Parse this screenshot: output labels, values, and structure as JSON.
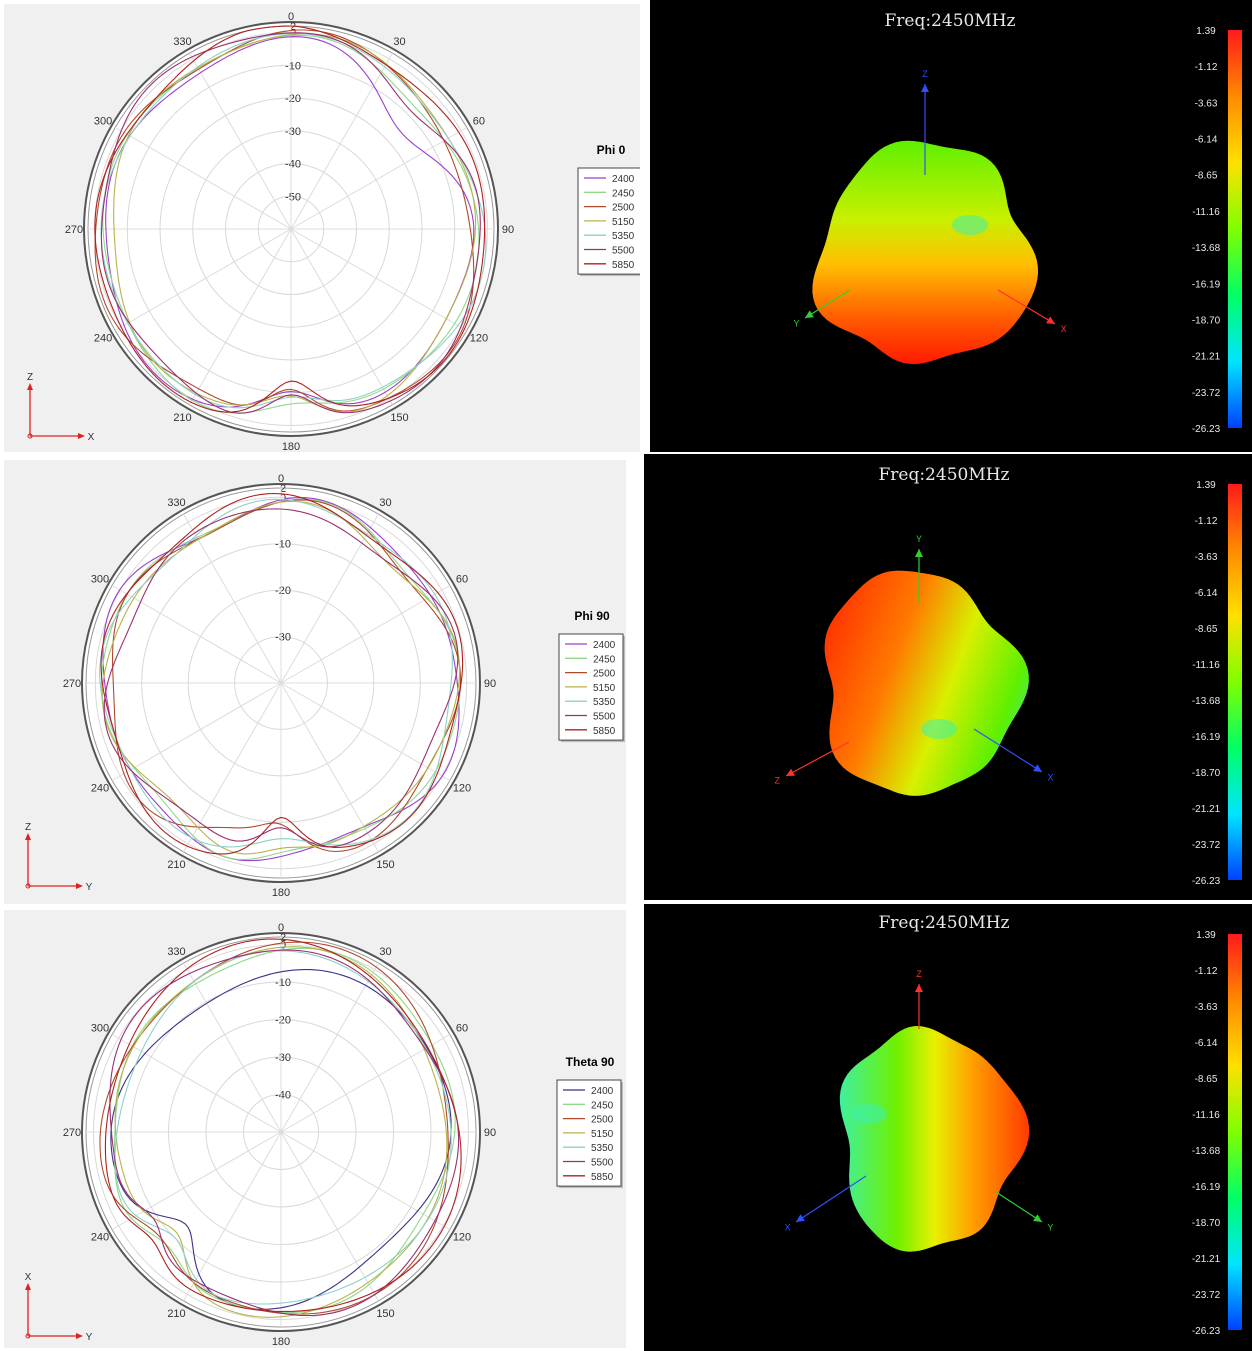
{
  "chart_data": [
    {
      "type": "polar",
      "title": "Phi 0",
      "axes_indicator": {
        "vertical": "Z",
        "horizontal": "X"
      },
      "angle_labels": [
        "0",
        "30",
        "60",
        "90",
        "120",
        "150",
        "180",
        "210",
        "240",
        "270",
        "300",
        "330"
      ],
      "radial_ticks": [
        "2",
        "0",
        "-10",
        "-20",
        "-30",
        "-40",
        "-50"
      ],
      "r_range": [
        -60,
        2
      ],
      "series": [
        {
          "name": "2400",
          "color": "#9a3fd0"
        },
        {
          "name": "2450",
          "color": "#8fd88a"
        },
        {
          "name": "2500",
          "color": "#b04a2a"
        },
        {
          "name": "5150",
          "color": "#b9b24a"
        },
        {
          "name": "5350",
          "color": "#8fd0c8"
        },
        {
          "name": "5500",
          "color": "#9b3070"
        },
        {
          "name": "5850",
          "color": "#b02020"
        }
      ]
    },
    {
      "type": "polar",
      "title": "Phi 90",
      "axes_indicator": {
        "vertical": "Z",
        "horizontal": "Y"
      },
      "angle_labels": [
        "0",
        "30",
        "60",
        "90",
        "120",
        "150",
        "180",
        "210",
        "240",
        "270",
        "300",
        "330"
      ],
      "radial_ticks": [
        "2",
        "0",
        "-10",
        "-20",
        "-30"
      ],
      "r_range": [
        -40,
        2
      ],
      "series": [
        {
          "name": "2400",
          "color": "#9a3fd0"
        },
        {
          "name": "2450",
          "color": "#8fd88a"
        },
        {
          "name": "2500",
          "color": "#b04a2a"
        },
        {
          "name": "5150",
          "color": "#b9b24a"
        },
        {
          "name": "5350",
          "color": "#8fd0c8"
        },
        {
          "name": "5500",
          "color": "#9b3070"
        },
        {
          "name": "5850",
          "color": "#b02020"
        }
      ]
    },
    {
      "type": "polar",
      "title": "Theta 90",
      "axes_indicator": {
        "vertical": "X",
        "horizontal": "Y"
      },
      "angle_labels": [
        "0",
        "30",
        "60",
        "90",
        "120",
        "150",
        "180",
        "210",
        "240",
        "270",
        "300",
        "330"
      ],
      "radial_ticks": [
        "2",
        "0",
        "-10",
        "-20",
        "-30",
        "-40"
      ],
      "r_range": [
        -50,
        2
      ],
      "series": [
        {
          "name": "2400",
          "color": "#3c2f8a"
        },
        {
          "name": "2450",
          "color": "#8fd88a"
        },
        {
          "name": "2500",
          "color": "#b04a2a"
        },
        {
          "name": "5150",
          "color": "#b9b24a"
        },
        {
          "name": "5350",
          "color": "#8fd0c8"
        },
        {
          "name": "5500",
          "color": "#9b3070"
        },
        {
          "name": "5850",
          "color": "#b02020"
        }
      ]
    }
  ],
  "views3d": [
    {
      "freq_label": "Freq:2450MHz",
      "axes": [
        "Z",
        "Y",
        "X"
      ]
    },
    {
      "freq_label": "Freq:2450MHz",
      "axes": [
        "Y",
        "Z",
        "X"
      ]
    },
    {
      "freq_label": "Freq:2450MHz",
      "axes": [
        "Z",
        "X",
        "Y"
      ]
    }
  ],
  "colorbar": {
    "labels": [
      "1.39",
      "-1.12",
      "-3.63",
      "-6.14",
      "-8.65",
      "-11.16",
      "-13.68",
      "-16.19",
      "-18.70",
      "-21.21",
      "-23.72",
      "-26.23"
    ],
    "colors": [
      "#ff1a1a",
      "#ff8a00",
      "#ffe000",
      "#7fff00",
      "#00ff66",
      "#00e5ff",
      "#0040ff"
    ]
  }
}
